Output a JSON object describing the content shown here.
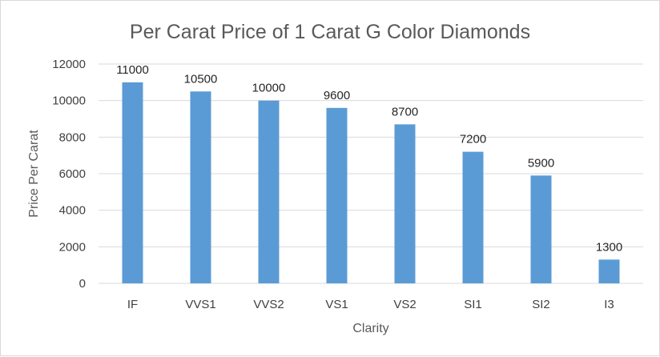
{
  "chart_data": {
    "type": "bar",
    "title": "Per Carat Price of 1 Carat G Color Diamonds",
    "xlabel": "Clarity",
    "ylabel": "Price Per Carat",
    "categories": [
      "IF",
      "VVS1",
      "VVS2",
      "VS1",
      "VS2",
      "SI1",
      "SI2",
      "I3"
    ],
    "values": [
      11000,
      10500,
      10000,
      9600,
      8700,
      7200,
      5900,
      1300
    ],
    "ylim": [
      0,
      12000
    ],
    "yticks": [
      "0",
      "2000",
      "4000",
      "6000",
      "8000",
      "10000",
      "12000"
    ],
    "grid": true,
    "legend": "none",
    "bar_color": "#5b9bd5",
    "grid_color": "#d9d9d9"
  }
}
